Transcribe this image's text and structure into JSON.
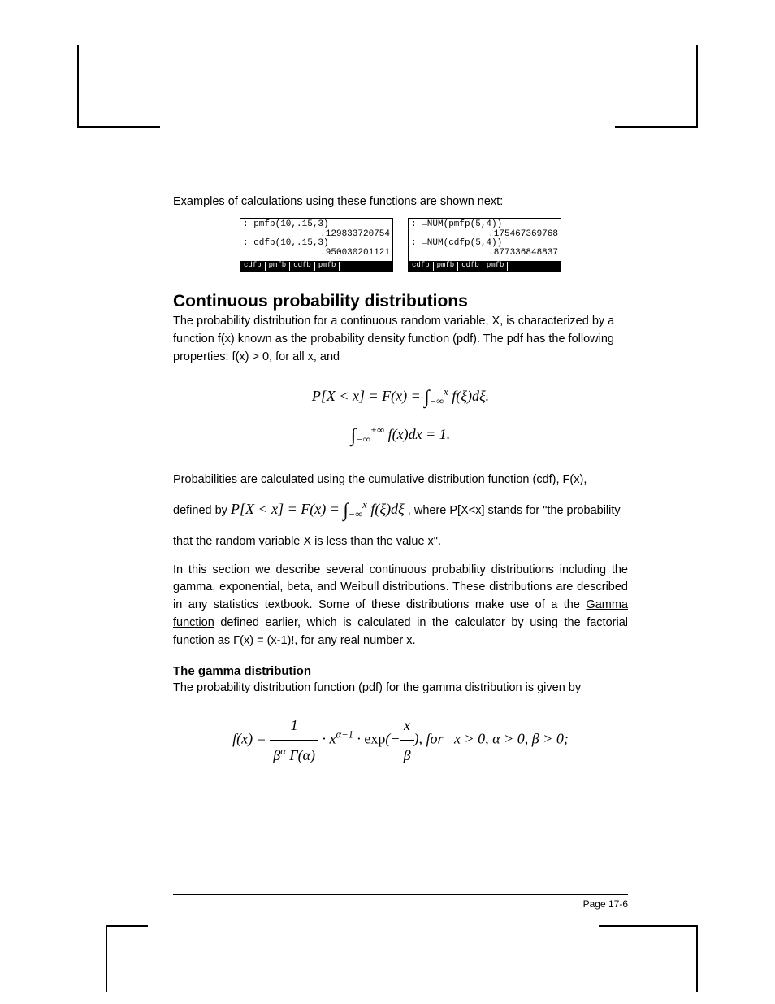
{
  "intro": "Examples of calculations using these functions are shown next:",
  "screens": {
    "left": {
      "line1": ": pmfb(10,.15,3)",
      "res1": ".129833720754",
      "line2": ": cdfb(10,.15,3)",
      "res2": ".950030201121",
      "soft": [
        "cdfb",
        "pmfb",
        "cdfb",
        "pmfb"
      ]
    },
    "right": {
      "line1": ": →NUM(pmfp(5,4))",
      "res1": ".175467369768",
      "line2": ": →NUM(cdfp(5,4))",
      "res2": ".877336848837",
      "soft": [
        "cdfb",
        "pmfb",
        "cdfb",
        "pmfb"
      ]
    }
  },
  "heading1": "Continuous probability distributions",
  "para1": "The probability distribution for a continuous random variable, X, is characterized by a function f(x) known as the probability density function (pdf). The pdf has the following properties:  f(x) > 0, for all x, and",
  "formula1_html": "P[X &lt; x] = F(x) = <span class='int'>∫</span><sub>−∞</sub><sup>x</sup> f(ξ)dξ.",
  "formula2_html": "<span class='int'>∫</span><sub>−∞</sub><sup>+∞</sup> f(x)dx = 1.",
  "para2_pre": "Probabilities are calculated using the cumulative distribution function (cdf), F(x), defined by ",
  "para2_inline_formula": "P[X &lt; x] = F(x) = <span class='int'>∫</span><sub>−∞</sub><sup>x</sup> f(ξ)dξ",
  "para2_post": " , where P[X<x] stands for \"the probability that the random variable X is less than the value x\".",
  "para3_a": "In this section we describe several continuous probability distributions including the gamma, exponential, beta, and Weibull distributions.  These distributions are described in any statistics textbook.  Some of these distributions make use of a the ",
  "para3_link": "Gamma function",
  "para3_b": " defined earlier, which is calculated in the calculator by using the factorial function as Γ(x) = (x-1)!, for any real number x.",
  "heading2": "The gamma distribution",
  "para4": "The probability distribution function (pdf) for the gamma distribution is given by",
  "formula3_html": "f(x) = <span class='frac'><span class='num'>1</span><span class='den'>β<sup>α</sup> Γ(α)</span></span> · x<sup>α−1</sup> · <span class='rm'>exp</span>(−<span class='frac'><span class='num'>x</span><span class='den'>β</span></span>), for &nbsp; x &gt; 0, α &gt; 0, β &gt; 0;",
  "page_num": "Page 17-6",
  "colors": {
    "text": "#000000",
    "bg": "#ffffff",
    "inv_bg": "#000000",
    "inv_fg": "#ffffff"
  },
  "fonts": {
    "body_size_pt": 11,
    "h2_size_pt": 16,
    "h3_size_pt": 12,
    "calc_size_pt": 9,
    "formula_family": "Times New Roman"
  }
}
